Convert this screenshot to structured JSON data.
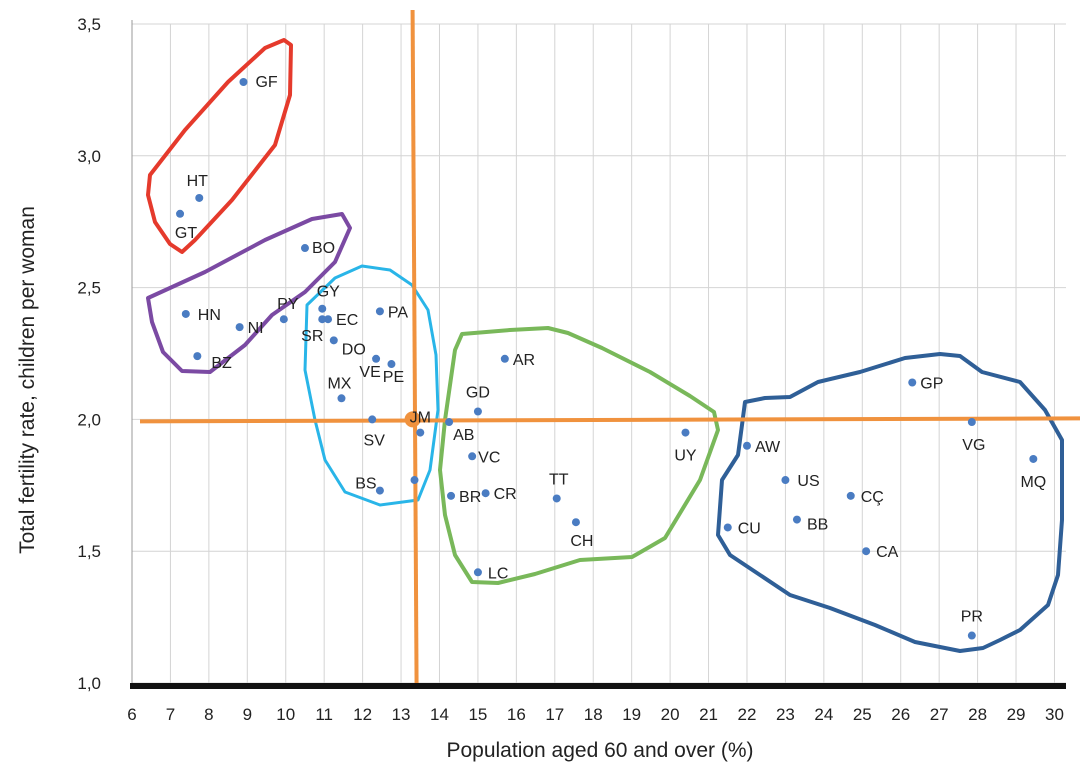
{
  "chart_data": {
    "type": "scatter",
    "title": "",
    "xlabel": "Population aged 60 and over (%)",
    "ylabel": "Total fertility rate, children per woman",
    "xlim": [
      6,
      30.3
    ],
    "ylim": [
      1.0,
      3.5
    ],
    "x_ticks": [
      6,
      7,
      8,
      9,
      10,
      11,
      12,
      13,
      14,
      15,
      16,
      17,
      18,
      19,
      20,
      21,
      22,
      23,
      24,
      25,
      26,
      27,
      28,
      29,
      30
    ],
    "x_tick_labels": [
      "6",
      "7",
      "8",
      "9",
      "10",
      "11",
      "12",
      "13",
      "14",
      "15",
      "16",
      "17",
      "18",
      "19",
      "20",
      "21",
      "22",
      "23",
      "24",
      "25",
      "26",
      "27",
      "28",
      "29",
      "30"
    ],
    "y_ticks": [
      1.0,
      1.5,
      2.0,
      2.5,
      3.0,
      3.5
    ],
    "y_tick_labels": [
      "1,0",
      "1,5",
      "2,0",
      "2,5",
      "3,0",
      "3,5"
    ],
    "grid": true,
    "reference_lines": {
      "x": 13.3,
      "y": 2.0,
      "color": "#f0923e"
    },
    "marker_color": "#4a7cc2",
    "points": [
      {
        "label": "GF",
        "x": 8.9,
        "y": 3.28
      },
      {
        "label": "HT",
        "x": 7.75,
        "y": 2.84
      },
      {
        "label": "GT",
        "x": 7.25,
        "y": 2.78
      },
      {
        "label": "BO",
        "x": 10.5,
        "y": 2.65
      },
      {
        "label": "HN",
        "x": 7.4,
        "y": 2.4
      },
      {
        "label": "NI",
        "x": 8.8,
        "y": 2.35
      },
      {
        "label": "PY",
        "x": 9.95,
        "y": 2.38
      },
      {
        "label": "BZ",
        "x": 7.7,
        "y": 2.24
      },
      {
        "label": "GY",
        "x": 10.95,
        "y": 2.42
      },
      {
        "label": "SR",
        "x": 10.95,
        "y": 2.38
      },
      {
        "label": "EC",
        "x": 11.1,
        "y": 2.38
      },
      {
        "label": "PA",
        "x": 12.45,
        "y": 2.41
      },
      {
        "label": "DO",
        "x": 11.25,
        "y": 2.3
      },
      {
        "label": "VE",
        "x": 12.35,
        "y": 2.23
      },
      {
        "label": "PE",
        "x": 12.75,
        "y": 2.21
      },
      {
        "label": "MX",
        "x": 11.45,
        "y": 2.08
      },
      {
        "label": "SV",
        "x": 12.25,
        "y": 2.0
      },
      {
        "label": "JM",
        "x": 13.5,
        "y": 1.95
      },
      {
        "label": "BS",
        "x": 12.45,
        "y": 1.73
      },
      {
        "label": "",
        "x": 13.35,
        "y": 1.77
      },
      {
        "label": "AR",
        "x": 15.7,
        "y": 2.23
      },
      {
        "label": "GD",
        "x": 15.0,
        "y": 2.03
      },
      {
        "label": "AB",
        "x": 14.25,
        "y": 1.99
      },
      {
        "label": "VC",
        "x": 14.85,
        "y": 1.86
      },
      {
        "label": "BR",
        "x": 14.3,
        "y": 1.71
      },
      {
        "label": "CR",
        "x": 15.2,
        "y": 1.72
      },
      {
        "label": "TT",
        "x": 17.05,
        "y": 1.7
      },
      {
        "label": "CH",
        "x": 17.55,
        "y": 1.61
      },
      {
        "label": "LC",
        "x": 15.0,
        "y": 1.42
      },
      {
        "label": "UY",
        "x": 20.4,
        "y": 1.95
      },
      {
        "label": "GP",
        "x": 26.3,
        "y": 2.14
      },
      {
        "label": "VG",
        "x": 27.85,
        "y": 1.99
      },
      {
        "label": "AW",
        "x": 22.0,
        "y": 1.9
      },
      {
        "label": "MQ",
        "x": 29.45,
        "y": 1.85
      },
      {
        "label": "US",
        "x": 23.0,
        "y": 1.77
      },
      {
        "label": "CÇ",
        "x": 24.7,
        "y": 1.71
      },
      {
        "label": "BB",
        "x": 23.3,
        "y": 1.62
      },
      {
        "label": "CU",
        "x": 21.5,
        "y": 1.59
      },
      {
        "label": "CA",
        "x": 25.1,
        "y": 1.5
      },
      {
        "label": "PR",
        "x": 27.85,
        "y": 1.18
      }
    ],
    "group_outline_colors": [
      "#e53a2c",
      "#7b4aa3",
      "#29b5e8",
      "#79b85a",
      "#2f5f97"
    ]
  }
}
